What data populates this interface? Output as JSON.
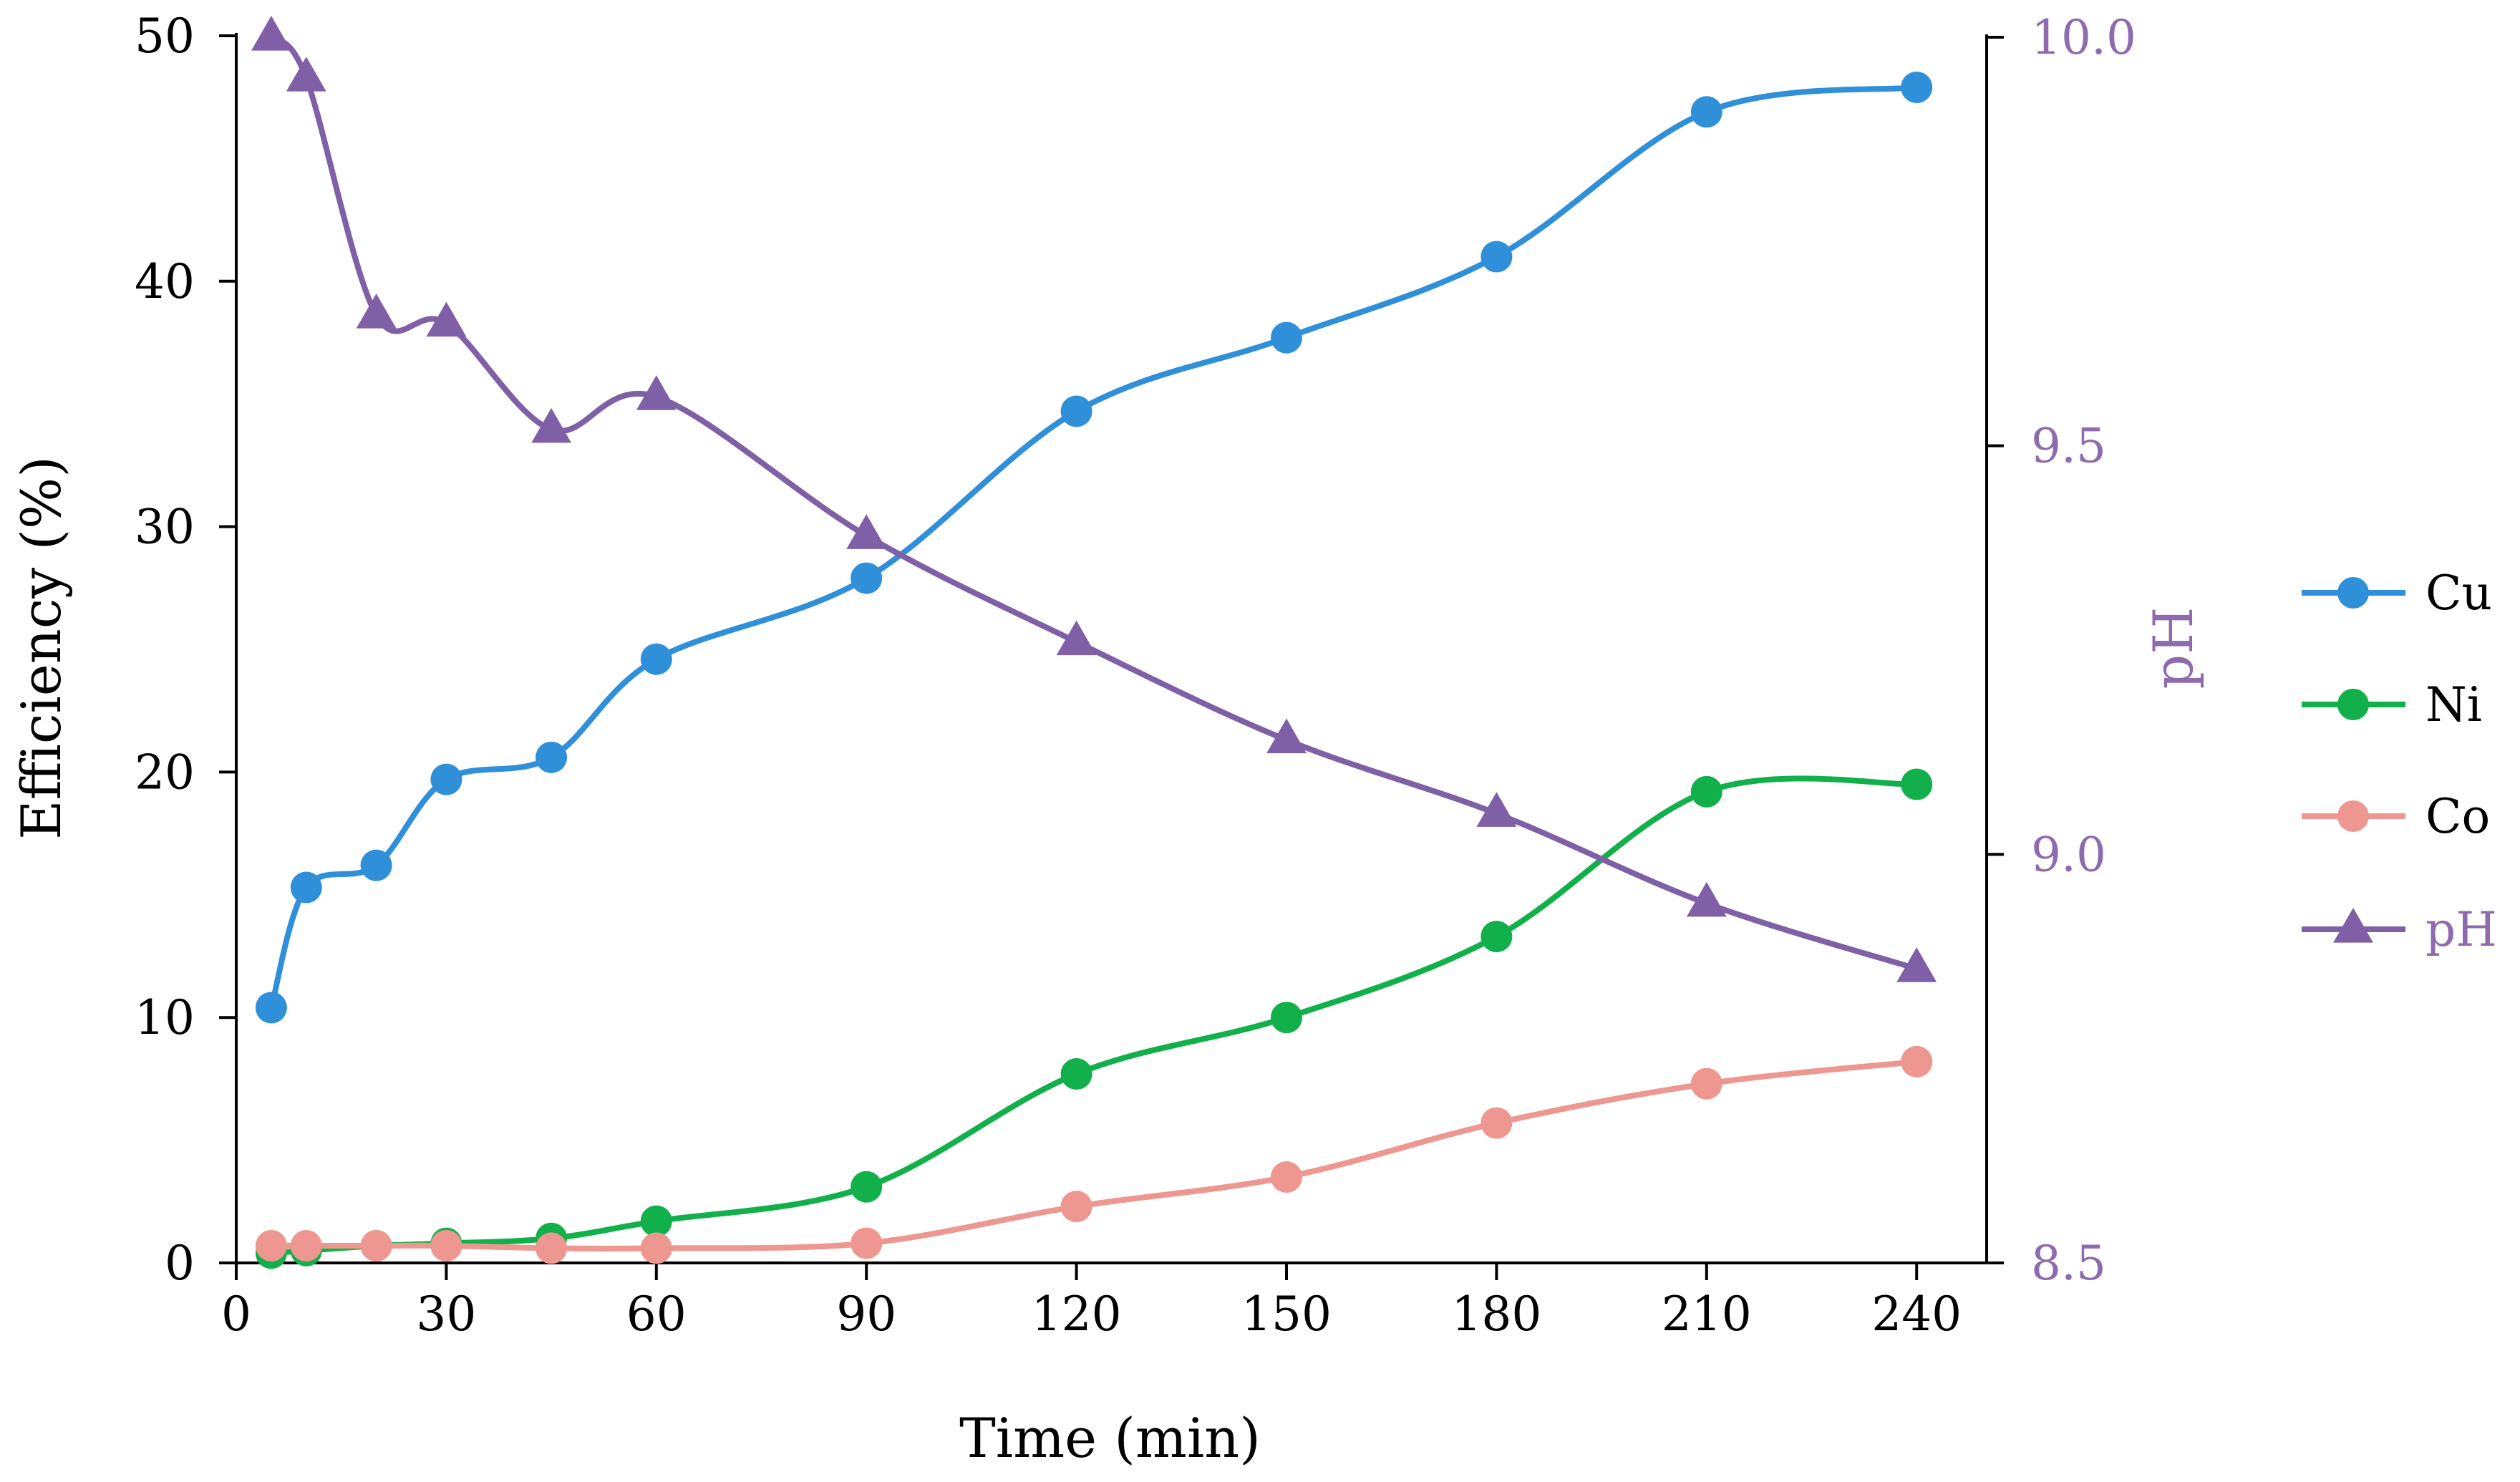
{
  "chart_data": {
    "type": "line",
    "title": "",
    "xlabel": "Time (min)",
    "ylabel": "Efficiency (%)",
    "y2label": "pH",
    "xlim": [
      0,
      250
    ],
    "ylim": [
      0,
      50
    ],
    "y2lim": [
      8.5,
      10.0
    ],
    "xticks": [
      0,
      30,
      60,
      90,
      120,
      150,
      180,
      210,
      240
    ],
    "yticks": [
      0,
      10,
      20,
      30,
      40,
      50
    ],
    "y2ticks": [
      "8.5",
      "9.0",
      "9.5",
      "10.0"
    ],
    "legend_position": "right",
    "grid": false,
    "series": [
      {
        "name": "Cu",
        "axis": "left",
        "marker": "circle",
        "color": "#2F8FD8",
        "x": [
          5,
          10,
          20,
          30,
          45,
          60,
          90,
          120,
          150,
          180,
          210,
          240
        ],
        "values": [
          10.4,
          15.3,
          16.2,
          19.7,
          20.6,
          24.6,
          27.9,
          34.7,
          37.7,
          41.0,
          46.9,
          47.9
        ]
      },
      {
        "name": "Ni",
        "axis": "left",
        "marker": "circle",
        "color": "#12B04A",
        "x": [
          5,
          10,
          20,
          30,
          45,
          60,
          90,
          120,
          150,
          180,
          210,
          240
        ],
        "values": [
          0.4,
          0.5,
          0.7,
          0.8,
          1.0,
          1.7,
          3.1,
          7.7,
          10.0,
          13.3,
          19.2,
          19.5
        ]
      },
      {
        "name": "Co",
        "axis": "left",
        "marker": "circle",
        "color": "#EE9790",
        "x": [
          5,
          10,
          20,
          30,
          45,
          60,
          90,
          120,
          150,
          180,
          210,
          240
        ],
        "values": [
          0.7,
          0.7,
          0.7,
          0.7,
          0.6,
          0.6,
          0.8,
          2.3,
          3.5,
          5.7,
          7.3,
          8.2
        ]
      },
      {
        "name": "pH",
        "axis": "right",
        "marker": "triangle",
        "color": "#7F60A6",
        "x": [
          5,
          10,
          20,
          30,
          45,
          60,
          90,
          120,
          150,
          180,
          210,
          240
        ],
        "values": [
          10.0,
          9.95,
          9.66,
          9.65,
          9.52,
          9.56,
          9.39,
          9.26,
          9.14,
          9.05,
          8.94,
          8.86
        ]
      }
    ]
  }
}
